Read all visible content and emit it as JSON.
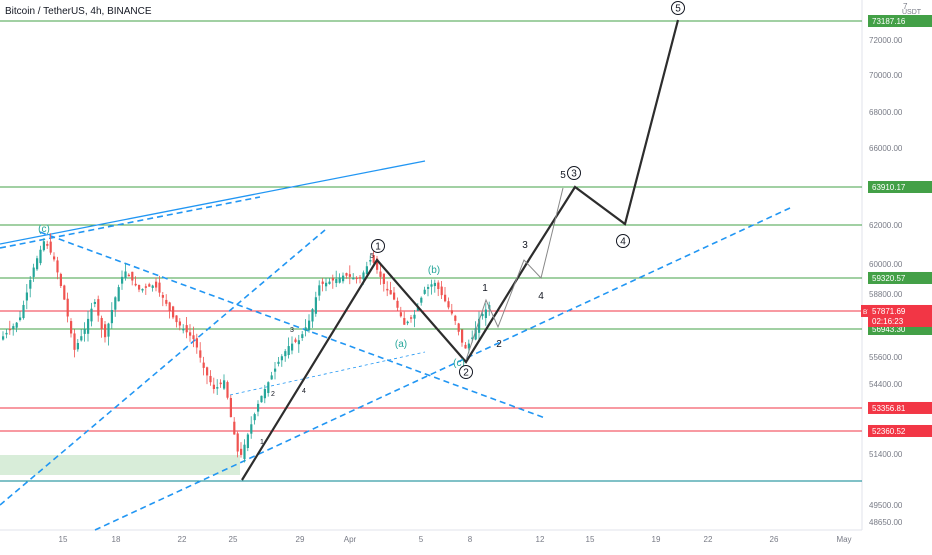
{
  "header": {
    "title": "Bitcoin / TetherUS, 4h, BINANCE"
  },
  "chart_data": {
    "type": "candlestick",
    "title": "Bitcoin / TetherUS, 4h, BINANCE",
    "currency": "USDT",
    "x_ticks": [
      "15",
      "18",
      "22",
      "25",
      "29",
      "Apr",
      "5",
      "8",
      "12",
      "15",
      "19",
      "22",
      "26",
      "May"
    ],
    "y_ticks": [
      "48650.00",
      "49500.00",
      "51400.00",
      "53400.00",
      "54400.00",
      "55600.00",
      "58800.00",
      "60000.00",
      "62000.00",
      "64000.00",
      "66000.00",
      "68000.00",
      "70000.00",
      "72000.00"
    ],
    "horizontal_levels": [
      {
        "value": 73187.16,
        "label": "73187.16",
        "color": "#43a047"
      },
      {
        "value": 63910.17,
        "label": "63910.17",
        "color": "#43a047"
      },
      {
        "value": 62000,
        "label": "",
        "color": "#43a047"
      },
      {
        "value": 59320.57,
        "label": "59320.57",
        "color": "#43a047"
      },
      {
        "value": 57871.69,
        "label": "57871.69",
        "color": "#f23645"
      },
      {
        "value": 56943.3,
        "label": "56943.30",
        "color": "#43a047"
      },
      {
        "value": 53356.81,
        "label": "53356.81",
        "color": "#f23645"
      },
      {
        "value": 52360.52,
        "label": "52360.52",
        "color": "#f23645"
      },
      {
        "value": 50400,
        "label": "",
        "color": "#00838f"
      }
    ],
    "current_price": {
      "value": 57871.69,
      "symbol": "BTCUSDT",
      "price": "57871.69",
      "countdown": "02:16:23"
    },
    "top_tick_partial": "7",
    "wave_labels": [
      {
        "text": "(c)",
        "color": "#26a69a"
      },
      {
        "text": "1",
        "circled": true
      },
      {
        "text": "(b)",
        "color": "#26a69a"
      },
      {
        "text": "(a)",
        "color": "#26a69a"
      },
      {
        "text": "(c)",
        "color": "#26a69a"
      },
      {
        "text": "2",
        "circled": true
      },
      {
        "text": "1"
      },
      {
        "text": "2"
      },
      {
        "text": "3"
      },
      {
        "text": "4"
      },
      {
        "text": "5"
      },
      {
        "text": "3",
        "circled": true
      },
      {
        "text": "4",
        "circled": true
      },
      {
        "text": "5",
        "circled": true
      },
      {
        "text": "1"
      },
      {
        "text": "2"
      },
      {
        "text": "3"
      },
      {
        "text": "4"
      },
      {
        "text": "5"
      }
    ],
    "colors": {
      "up": "#26a69a",
      "down": "#ef5350",
      "projection": "#2d2d2d",
      "trend": "#2196f3"
    }
  }
}
